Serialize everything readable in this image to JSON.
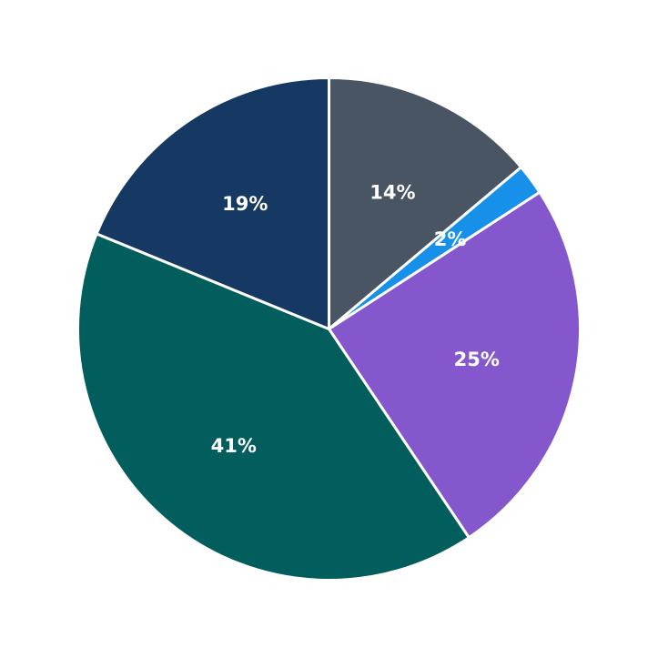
{
  "chart_data": {
    "type": "pie",
    "start_angle_deg": 90,
    "direction": "clockwise",
    "slices": [
      {
        "value": 14,
        "label": "14%",
        "color": "#4a5563"
      },
      {
        "value": 2,
        "label": "2%",
        "color": "#1690e8"
      },
      {
        "value": 25,
        "label": "25%",
        "color": "#8557cc"
      },
      {
        "value": 41,
        "label": "41%",
        "color": "#025e5d"
      },
      {
        "value": 19,
        "label": "19%",
        "color": "#163963"
      }
    ]
  }
}
